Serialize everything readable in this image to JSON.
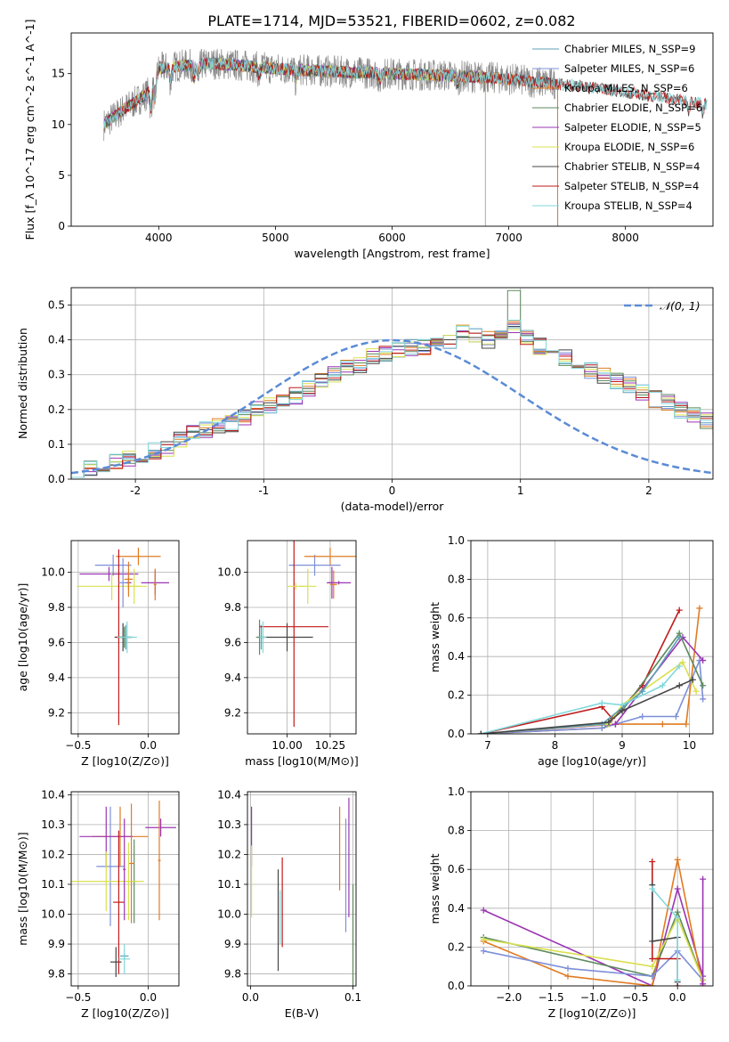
{
  "figure_title": "PLATE=1714, MJD=53521, FIBERID=0602, z=0.082",
  "colors": {
    "chabrier_miles": "#5fa0b7",
    "salpeter_miles": "#7d8fd9",
    "kroupa_miles": "#e07b23",
    "chabrier_elodie": "#5c8a5c",
    "salpeter_elodie": "#9b35b3",
    "kroupa_elodie": "#d9e050",
    "chabrier_stelib": "#444444",
    "salpeter_stelib": "#c11a1a",
    "kroupa_stelib": "#82d8dc",
    "normal_curve": "#5b8bd6",
    "grid": "#b0b0b0"
  },
  "chart_data": [
    {
      "id": "spectrum",
      "type": "line",
      "xlabel": "wavelength [Angstrom, rest frame]",
      "ylabel": "Flux [f_λ 10^-17 erg cm^-2 s^-1 A^-1]",
      "xlim": [
        3250,
        8750
      ],
      "ylim": [
        0,
        19
      ],
      "xticks": [
        4000,
        5000,
        6000,
        7000,
        8000
      ],
      "yticks": [
        0,
        5,
        10,
        15
      ],
      "grid": false,
      "legend_position": "right",
      "legend": [
        "Chabrier MILES, N_SSP=9",
        "Salpeter MILES, N_SSP=6",
        "Kroupa MILES, N_SSP=6",
        "Chabrier ELODIE, N_SSP=6",
        "Salpeter ELODIE, N_SSP=5",
        "Kroupa ELODIE, N_SSP=6",
        "Chabrier STELIB, N_SSP=4",
        "Salpeter STELIB, N_SSP=4",
        "Kroupa STELIB, N_SSP=4"
      ],
      "continuum": {
        "x": [
          3530,
          3700,
          3900,
          4000,
          4200,
          4500,
          5000,
          5500,
          6000,
          6500,
          7000,
          7200,
          7400,
          7600,
          8000,
          8400,
          8700
        ],
        "y": [
          10.0,
          11.5,
          13.0,
          15.5,
          15.8,
          16.0,
          15.5,
          15.2,
          15.0,
          14.8,
          14.5,
          14.2,
          14.0,
          13.8,
          13.2,
          12.5,
          12.0
        ]
      }
    },
    {
      "id": "residuals",
      "type": "bar",
      "xlabel": "(data-model)/error",
      "ylabel": "Normed distribution",
      "xlim": [
        -2.5,
        2.5
      ],
      "ylim": [
        0,
        0.55
      ],
      "xticks": [
        -2,
        -1,
        0,
        1,
        2
      ],
      "yticks": [
        0.0,
        0.1,
        0.2,
        0.3,
        0.4,
        0.5
      ],
      "grid": true,
      "legend_position": "top-right",
      "legend": [
        "𝒩(0, 1)"
      ],
      "bin_start": -2.5,
      "bin_width": 0.1,
      "counts": [
        0.03,
        0.03,
        0.04,
        0.05,
        0.06,
        0.07,
        0.08,
        0.09,
        0.11,
        0.13,
        0.14,
        0.15,
        0.16,
        0.18,
        0.2,
        0.21,
        0.23,
        0.24,
        0.26,
        0.28,
        0.3,
        0.32,
        0.33,
        0.35,
        0.36,
        0.37,
        0.38,
        0.38,
        0.39,
        0.4,
        0.42,
        0.41,
        0.4,
        0.42,
        0.44,
        0.41,
        0.38,
        0.37,
        0.35,
        0.33,
        0.31,
        0.3,
        0.28,
        0.27,
        0.25,
        0.23,
        0.22,
        0.2,
        0.18,
        0.17,
        0.15,
        0.14,
        0.12,
        0.11,
        0.1,
        0.08,
        0.07,
        0.06,
        0.05,
        0.04,
        0.03,
        0.03
      ]
    },
    {
      "id": "age_vs_Z",
      "type": "scatter",
      "xlabel": "Z [log10(Z/Z⊙)]",
      "ylabel": "age [log10(age/yr)]",
      "xlim": [
        -0.55,
        0.22
      ],
      "ylim": [
        9.08,
        10.18
      ],
      "xticks": [
        -0.5,
        0.0
      ],
      "xtick_labels": [
        "−0.5",
        "0.0"
      ],
      "yticks": [
        9.2,
        9.4,
        9.6,
        9.8,
        10.0
      ],
      "points": [
        {
          "color": "chabrier_miles",
          "x": -0.16,
          "y": 9.63,
          "xe": 0.04,
          "ye": 0.07
        },
        {
          "color": "salpeter_miles",
          "x": -0.25,
          "y": 10.04,
          "xe": 0.13,
          "ye": 0.06
        },
        {
          "color": "kroupa_miles",
          "x": -0.07,
          "y": 10.09,
          "xe": 0.16,
          "ye": 0.05
        },
        {
          "color": "chabrier_elodie",
          "x": -0.17,
          "y": 9.63,
          "xe": 0.06,
          "ye": 0.06
        },
        {
          "color": "salpeter_elodie",
          "x": -0.28,
          "y": 9.99,
          "xe": 0.21,
          "ye": 0.04
        },
        {
          "color": "kroupa_elodie",
          "x": -0.26,
          "y": 9.92,
          "xe": 0.25,
          "ye": 0.08
        },
        {
          "color": "chabrier_stelib",
          "x": -0.18,
          "y": 9.63,
          "xe": 0.06,
          "ye": 0.08
        },
        {
          "color": "salpeter_stelib",
          "x": -0.21,
          "y": 9.63,
          "xe": 0.02,
          "ye": 0.5
        },
        {
          "color": "kroupa_stelib",
          "x": -0.15,
          "y": 9.63,
          "xe": 0.07,
          "ye": 0.09
        },
        {
          "color": "salpeter_elodie",
          "x": -0.14,
          "y": 9.94,
          "xe": 0.02,
          "ye": 0.04
        },
        {
          "color": "salpeter_miles",
          "x": -0.18,
          "y": 9.94,
          "xe": 0.03,
          "ye": 0.14
        },
        {
          "color": "kroupa_elodie",
          "x": -0.1,
          "y": 9.92,
          "xe": 0.05,
          "ye": 0.1
        },
        {
          "color": "kroupa_miles",
          "x": -0.14,
          "y": 9.96,
          "xe": 0.03,
          "ye": 0.1
        },
        {
          "color": "salpeter_elodie",
          "x": 0.05,
          "y": 9.94,
          "xe": 0.1,
          "ye": 0.07
        },
        {
          "color": "kroupa_miles",
          "x": 0.05,
          "y": 9.93,
          "xe": 0.01,
          "ye": 0.09
        }
      ]
    },
    {
      "id": "age_vs_mass",
      "type": "scatter",
      "xlabel": "mass [log10(M/M⊙)]",
      "ylabel": "",
      "xlim": [
        9.77,
        10.4
      ],
      "ylim": [
        9.08,
        10.18
      ],
      "xticks": [
        10.0,
        10.25
      ],
      "xtick_labels": [
        "10.00",
        "10.25"
      ],
      "yticks": [
        9.2,
        9.4,
        9.6,
        9.8,
        10.0
      ],
      "points": [
        {
          "color": "chabrier_miles",
          "x": 9.85,
          "y": 9.63,
          "xe": 0.02,
          "ye": 0.07
        },
        {
          "color": "salpeter_miles",
          "x": 10.16,
          "y": 10.04,
          "xe": 0.15,
          "ye": 0.06
        },
        {
          "color": "kroupa_miles",
          "x": 10.25,
          "y": 10.09,
          "xe": 0.15,
          "ye": 0.05
        },
        {
          "color": "chabrier_elodie",
          "x": 9.84,
          "y": 9.63,
          "xe": 0.02,
          "ye": 0.1
        },
        {
          "color": "salpeter_elodie",
          "x": 10.26,
          "y": 9.94,
          "xe": 0.02,
          "ye": 0.09
        },
        {
          "color": "kroupa_elodie",
          "x": 10.12,
          "y": 9.92,
          "xe": 0.05,
          "ye": 0.1
        },
        {
          "color": "chabrier_stelib",
          "x": 10.0,
          "y": 9.63,
          "xe": 0.15,
          "ye": 0.08
        },
        {
          "color": "salpeter_stelib",
          "x": 10.04,
          "y": 9.69,
          "xe": 0.2,
          "ye": 0.57
        },
        {
          "color": "kroupa_stelib",
          "x": 9.86,
          "y": 9.63,
          "xe": 0.02,
          "ye": 0.09
        },
        {
          "color": "kroupa_elodie",
          "x": 10.05,
          "y": 9.92,
          "xe": 0.05,
          "ye": 0.02
        },
        {
          "color": "salpeter_elodie",
          "x": 10.3,
          "y": 9.94,
          "xe": 0.07,
          "ye": 0.01
        },
        {
          "color": "kroupa_miles",
          "x": 10.27,
          "y": 9.93,
          "xe": 0.02,
          "ye": 0.08
        }
      ]
    },
    {
      "id": "massweight_vs_age",
      "type": "line",
      "xlabel": "age [log10(age/yr)]",
      "ylabel": "mass weight",
      "xlim": [
        6.75,
        10.35
      ],
      "ylim": [
        0,
        1.0
      ],
      "xticks": [
        7,
        8,
        9,
        10
      ],
      "yticks": [
        0.0,
        0.2,
        0.4,
        0.6,
        0.8,
        1.0
      ],
      "grid": true,
      "series": [
        {
          "color": "salpeter_stelib",
          "x": [
            6.9,
            8.7,
            8.85,
            9.3,
            9.85
          ],
          "y": [
            0.0,
            0.14,
            0.08,
            0.25,
            0.64
          ]
        },
        {
          "color": "kroupa_miles",
          "x": [
            6.9,
            8.7,
            8.9,
            9.6,
            9.95,
            10.15
          ],
          "y": [
            0.0,
            0.03,
            0.05,
            0.05,
            0.05,
            0.65
          ]
        },
        {
          "color": "salpeter_miles",
          "x": [
            6.9,
            8.7,
            8.9,
            9.3,
            9.8,
            10.15,
            10.2
          ],
          "y": [
            0.0,
            0.03,
            0.05,
            0.09,
            0.09,
            0.38,
            0.18
          ]
        },
        {
          "color": "salpeter_elodie",
          "x": [
            6.9,
            8.9,
            9.9,
            10.2
          ],
          "y": [
            0.0,
            0.05,
            0.5,
            0.38
          ]
        },
        {
          "color": "chabrier_elodie",
          "x": [
            6.9,
            8.75,
            9.0,
            9.85,
            10.2
          ],
          "y": [
            0.0,
            0.05,
            0.12,
            0.52,
            0.25
          ]
        },
        {
          "color": "kroupa_elodie",
          "x": [
            6.9,
            8.8,
            9.0,
            9.9,
            10.1
          ],
          "y": [
            0.0,
            0.05,
            0.15,
            0.37,
            0.22
          ]
        },
        {
          "color": "chabrier_miles",
          "x": [
            6.9,
            8.7,
            9.3,
            9.85
          ],
          "y": [
            0.0,
            0.05,
            0.22,
            0.5
          ]
        },
        {
          "color": "kroupa_stelib",
          "x": [
            6.9,
            8.7,
            9.0,
            9.6,
            9.85
          ],
          "y": [
            0.0,
            0.16,
            0.15,
            0.25,
            0.35
          ]
        },
        {
          "color": "chabrier_stelib",
          "x": [
            6.9,
            8.8,
            9.0,
            9.85,
            10.05
          ],
          "y": [
            0.0,
            0.06,
            0.12,
            0.25,
            0.28
          ]
        }
      ]
    },
    {
      "id": "mass_vs_Z",
      "type": "scatter",
      "xlabel": "Z [log10(Z/Z⊙)]",
      "ylabel": "mass [log10(M/M⊙)]",
      "xlim": [
        -0.55,
        0.22
      ],
      "ylim": [
        9.76,
        10.41
      ],
      "xticks": [
        -0.5,
        0.0
      ],
      "xtick_labels": [
        "−0.5",
        "0.0"
      ],
      "yticks": [
        9.8,
        9.9,
        10.0,
        10.1,
        10.2,
        10.3,
        10.4
      ],
      "points": [
        {
          "color": "chabrier_miles",
          "x": -0.17,
          "y": 9.86,
          "xe": 0.03,
          "ye": 0.01
        },
        {
          "color": "salpeter_miles",
          "x": -0.27,
          "y": 10.16,
          "xe": 0.1,
          "ye": 0.2
        },
        {
          "color": "kroupa_miles",
          "x": -0.2,
          "y": 10.26,
          "xe": 0.2,
          "ye": 0.1
        },
        {
          "color": "chabrier_elodie",
          "x": -0.1,
          "y": 10.11,
          "xe": 0.02,
          "ye": 0.14
        },
        {
          "color": "salpeter_elodie",
          "x": -0.3,
          "y": 10.26,
          "xe": 0.19,
          "ye": 0.1
        },
        {
          "color": "kroupa_elodie",
          "x": -0.3,
          "y": 10.11,
          "xe": 0.27,
          "ye": 0.1
        },
        {
          "color": "chabrier_stelib",
          "x": -0.23,
          "y": 9.84,
          "xe": 0.04,
          "ye": 0.05
        },
        {
          "color": "salpeter_stelib",
          "x": -0.21,
          "y": 10.04,
          "xe": 0.04,
          "ye": 0.24
        },
        {
          "color": "kroupa_stelib",
          "x": -0.17,
          "y": 9.85,
          "xe": 0.04,
          "ye": 0.05
        },
        {
          "color": "salpeter_elodie",
          "x": -0.17,
          "y": 10.15,
          "xe": 0.01,
          "ye": 0.17
        },
        {
          "color": "kroupa_miles",
          "x": -0.12,
          "y": 10.17,
          "xe": 0.02,
          "ye": 0.2
        },
        {
          "color": "kroupa_elodie",
          "x": -0.14,
          "y": 10.11,
          "xe": 0.02,
          "ye": 0.13
        },
        {
          "color": "salpeter_elodie",
          "x": 0.09,
          "y": 10.29,
          "xe": 0.11,
          "ye": 0.03
        },
        {
          "color": "kroupa_miles",
          "x": 0.08,
          "y": 10.18,
          "xe": 0.01,
          "ye": 0.2
        }
      ]
    },
    {
      "id": "mass_vs_ebv",
      "type": "scatter",
      "xlabel": "E(B-V)",
      "ylabel": "",
      "xlim": [
        -0.003,
        0.103
      ],
      "ylim": [
        9.76,
        10.41
      ],
      "xticks": [
        0.0,
        0.1
      ],
      "xtick_labels": [
        "0.0",
        "0.1"
      ],
      "yticks": [
        9.8,
        9.9,
        10.0,
        10.1,
        10.2,
        10.3,
        10.4
      ],
      "points": [
        {
          "color": "salpeter_elodie",
          "x": 0.001,
          "y": 10.26,
          "xe": 0.0,
          "ye": 0.1
        },
        {
          "color": "kroupa_elodie",
          "x": 0.001,
          "y": 10.11,
          "xe": 0.0,
          "ye": 0.12
        },
        {
          "color": "chabrier_stelib",
          "x": 0.027,
          "y": 9.98,
          "xe": 0.0,
          "ye": 0.17
        },
        {
          "color": "salpeter_stelib",
          "x": 0.031,
          "y": 10.04,
          "xe": 0.0,
          "ye": 0.15
        },
        {
          "color": "kroupa_stelib",
          "x": 0.029,
          "y": 9.99,
          "xe": 0.0,
          "ye": 0.09
        },
        {
          "color": "kroupa_miles",
          "x": 0.087,
          "y": 10.22,
          "xe": 0.0,
          "ye": 0.14
        },
        {
          "color": "salpeter_miles",
          "x": 0.093,
          "y": 10.13,
          "xe": 0.0,
          "ye": 0.19
        },
        {
          "color": "salpeter_elodie",
          "x": 0.096,
          "y": 10.19,
          "xe": 0.0,
          "ye": 0.2
        },
        {
          "color": "chabrier_elodie",
          "x": 0.1,
          "y": 9.93,
          "xe": 0.0,
          "ye": 0.17
        }
      ]
    },
    {
      "id": "massweight_vs_Z",
      "type": "line",
      "xlabel": "Z [log10(Z/Z⊙)]",
      "ylabel": "mass weight",
      "xlim": [
        -2.45,
        0.42
      ],
      "ylim": [
        0,
        1.0
      ],
      "xticks": [
        -2.0,
        -1.5,
        -1.0,
        -0.5,
        0.0
      ],
      "xtick_labels": [
        "−2.0",
        "−1.5",
        "−1.0",
        "−0.5",
        "0.0"
      ],
      "yticks": [
        0.0,
        0.2,
        0.4,
        0.6,
        0.8,
        1.0
      ],
      "grid": true,
      "series": [
        {
          "color": "salpeter_elodie",
          "x": [
            -2.3,
            -0.3,
            0.0,
            0.3
          ],
          "y": [
            0.39,
            0.0,
            0.5,
            0.05
          ]
        },
        {
          "color": "chabrier_elodie",
          "x": [
            -2.3,
            -0.3,
            0.0,
            0.3
          ],
          "y": [
            0.25,
            0.05,
            0.38,
            0.03
          ]
        },
        {
          "color": "kroupa_miles",
          "x": [
            -2.3,
            -1.3,
            -0.3,
            0.0,
            0.3
          ],
          "y": [
            0.23,
            0.05,
            0.0,
            0.65,
            0.0
          ]
        },
        {
          "color": "salpeter_miles",
          "x": [
            -2.3,
            -1.3,
            -0.3,
            0.0,
            0.3
          ],
          "y": [
            0.18,
            0.09,
            0.05,
            0.18,
            0.03
          ]
        },
        {
          "color": "kroupa_elodie",
          "x": [
            -2.3,
            -0.3,
            0.0,
            0.3
          ],
          "y": [
            0.24,
            0.1,
            0.35,
            0.03
          ]
        },
        {
          "color": "salpeter_stelib",
          "x": [
            -0.3,
            -0.3,
            0.0,
            0.0
          ],
          "y": [
            0.64,
            0.14,
            0.14,
            0.0
          ]
        },
        {
          "color": "chabrier_stelib",
          "x": [
            -0.3,
            -0.3,
            0.0,
            0.0
          ],
          "y": [
            0.52,
            0.23,
            0.25,
            0.02
          ]
        },
        {
          "color": "kroupa_stelib",
          "x": [
            -0.3,
            0.0,
            0.0
          ],
          "y": [
            0.5,
            0.35,
            0.03
          ]
        },
        {
          "color": "salpeter_elodie",
          "x": [
            0.3,
            0.3
          ],
          "y": [
            0.55,
            0.01
          ]
        }
      ]
    }
  ]
}
